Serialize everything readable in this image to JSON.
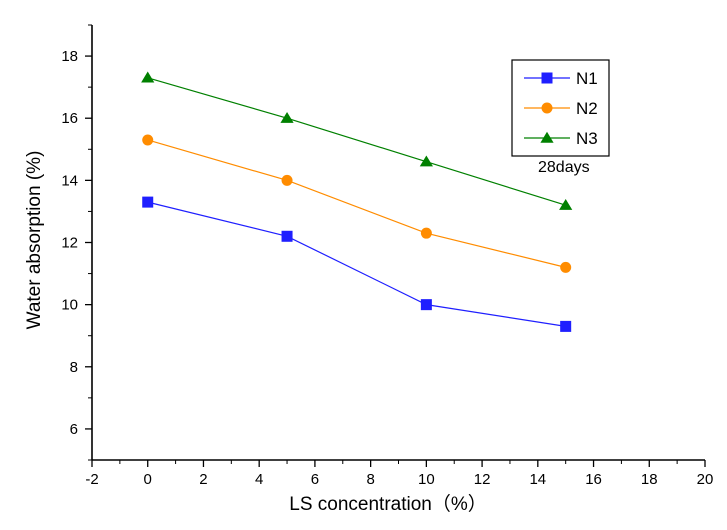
{
  "chart_data": {
    "type": "line",
    "title": "",
    "xlabel": "LS concentration（%）",
    "ylabel": "Water absorption (%)",
    "xlim": [
      -2,
      20
    ],
    "ylim": [
      5,
      19
    ],
    "x_ticks": [
      "-2",
      "0",
      "2",
      "4",
      "6",
      "8",
      "10",
      "12",
      "14",
      "16",
      "18",
      "20"
    ],
    "y_ticks": [
      "6",
      "8",
      "10",
      "12",
      "14",
      "16",
      "18"
    ],
    "x": [
      0,
      5,
      10,
      15
    ],
    "series": [
      {
        "name": "N1",
        "values": [
          13.3,
          12.2,
          10.0,
          9.3
        ],
        "color": "#1f1fff",
        "marker": "square"
      },
      {
        "name": "N2",
        "values": [
          15.3,
          14.0,
          12.3,
          11.2
        ],
        "color": "#ff8c00",
        "marker": "circle"
      },
      {
        "name": "N3",
        "values": [
          17.3,
          16.0,
          14.6,
          13.2
        ],
        "color": "#008000",
        "marker": "triangle"
      }
    ],
    "annotation": "28days",
    "legend_position": "top-right",
    "grid": false
  }
}
